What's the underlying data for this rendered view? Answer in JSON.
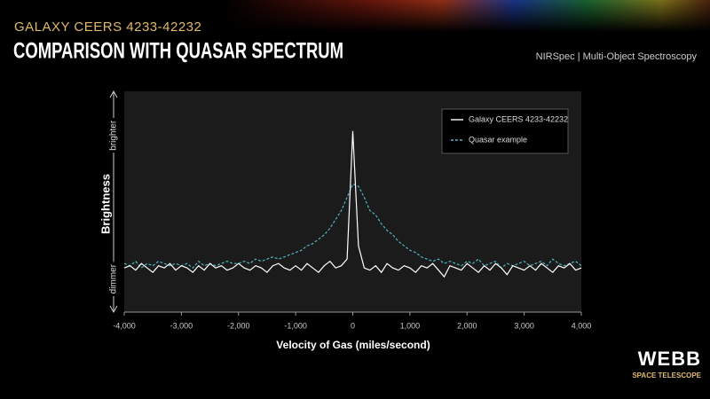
{
  "header": {
    "supertitle": "GALAXY CEERS 4233-42232",
    "instrument": "NIRSpec | Multi-Object Spectroscopy"
  },
  "logo": {
    "name": "WEBB",
    "tagline": "SPACE TELESCOPE"
  },
  "chart_data": {
    "type": "line",
    "title": "COMPARISON WITH QUASAR SPECTRUM",
    "x_label": "Velocity of Gas (miles/second)",
    "y_label": "Brightness",
    "xlim": [
      -4000,
      4000
    ],
    "xticks": [
      {
        "value": -4000,
        "label": "-4,000"
      },
      {
        "value": -3000,
        "label": "-3,000"
      },
      {
        "value": -2000,
        "label": "-2,000"
      },
      {
        "value": -1000,
        "label": "-1,000"
      },
      0,
      {
        "value": 1000,
        "label": "1,000"
      },
      {
        "value": 2000,
        "label": "2,000"
      },
      {
        "value": 3000,
        "label": "3,000"
      },
      {
        "value": 4000,
        "label": "4,000"
      }
    ],
    "ylim": [
      0,
      100
    ],
    "yticks": [
      {
        "value": 15,
        "label": "dimmer"
      },
      {
        "value": 80,
        "label": "brighter"
      }
    ],
    "legend": "upper right",
    "series": [
      {
        "name": "Galaxy CEERS 4233-42232",
        "color": "#ffffff",
        "dash": "solid",
        "x": [
          -4000,
          -3900,
          -3800,
          -3700,
          -3600,
          -3500,
          -3400,
          -3300,
          -3200,
          -3100,
          -3000,
          -2900,
          -2800,
          -2700,
          -2600,
          -2500,
          -2400,
          -2300,
          -2200,
          -2100,
          -2000,
          -1900,
          -1800,
          -1700,
          -1600,
          -1500,
          -1400,
          -1300,
          -1200,
          -1100,
          -1000,
          -900,
          -800,
          -700,
          -600,
          -500,
          -400,
          -300,
          -200,
          -100,
          0,
          100,
          200,
          300,
          400,
          500,
          600,
          700,
          800,
          900,
          1000,
          1100,
          1200,
          1300,
          1400,
          1500,
          1600,
          1700,
          1800,
          1900,
          2000,
          2100,
          2200,
          2300,
          2400,
          2500,
          2600,
          2700,
          2800,
          2900,
          3000,
          3100,
          3200,
          3300,
          3400,
          3500,
          3600,
          3700,
          3800,
          3900,
          4000
        ],
        "values": [
          20,
          21,
          19,
          22,
          20,
          18,
          21,
          20,
          22,
          19,
          21,
          20,
          18,
          21,
          19,
          22,
          20,
          21,
          19,
          20,
          22,
          20,
          19,
          21,
          20,
          18,
          21,
          22,
          20,
          19,
          21,
          19,
          22,
          20,
          18,
          21,
          23,
          20,
          21,
          24,
          82,
          30,
          20,
          19,
          21,
          18,
          22,
          20,
          19,
          21,
          20,
          18,
          21,
          20,
          22,
          19,
          16,
          21,
          20,
          19,
          22,
          20,
          18,
          21,
          19,
          22,
          20,
          17,
          21,
          20,
          19,
          21,
          19,
          22,
          20,
          18,
          21,
          20,
          22,
          19,
          20
        ]
      },
      {
        "name": "Quasar example",
        "color": "#4fb3bf",
        "dash": "dashed",
        "x": [
          -4000,
          -3900,
          -3800,
          -3700,
          -3600,
          -3500,
          -3400,
          -3300,
          -3200,
          -3100,
          -3000,
          -2900,
          -2800,
          -2700,
          -2600,
          -2500,
          -2400,
          -2300,
          -2200,
          -2100,
          -2000,
          -1900,
          -1800,
          -1700,
          -1600,
          -1500,
          -1400,
          -1300,
          -1200,
          -1100,
          -1000,
          -900,
          -800,
          -700,
          -600,
          -500,
          -400,
          -300,
          -200,
          -100,
          0,
          100,
          200,
          300,
          400,
          500,
          600,
          700,
          800,
          900,
          1000,
          1100,
          1200,
          1300,
          1400,
          1500,
          1600,
          1700,
          1800,
          1900,
          2000,
          2100,
          2200,
          2300,
          2400,
          2500,
          2600,
          2700,
          2800,
          2900,
          3000,
          3100,
          3200,
          3300,
          3400,
          3500,
          3600,
          3700,
          3800,
          3900,
          4000
        ],
        "values": [
          22,
          21,
          23,
          20,
          22,
          21,
          23,
          22,
          21,
          22,
          21,
          22,
          20,
          23,
          21,
          22,
          21,
          22,
          23,
          22,
          22,
          23,
          22,
          24,
          23,
          24,
          25,
          24,
          25,
          26,
          27,
          28,
          30,
          31,
          33,
          35,
          38,
          42,
          46,
          52,
          58,
          57,
          52,
          46,
          44,
          40,
          37,
          35,
          32,
          30,
          28,
          27,
          25,
          24,
          23,
          24,
          22,
          23,
          22,
          21,
          23,
          22,
          24,
          21,
          22,
          23,
          20,
          22,
          21,
          22,
          23,
          21,
          22,
          23,
          21,
          24,
          22,
          21,
          22,
          23,
          21
        ]
      }
    ]
  }
}
